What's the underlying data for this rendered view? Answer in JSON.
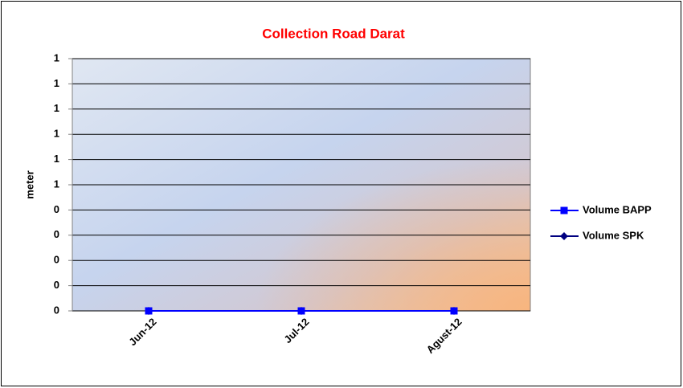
{
  "chart_data": {
    "type": "line",
    "title": "Collection Road Darat",
    "y_label": "meter",
    "categories": [
      "Jun-12",
      "Jul-12",
      "Agust-12"
    ],
    "series": [
      {
        "name": "Volume BAPP",
        "color": "#0000ff",
        "marker": "square",
        "values": [
          0,
          0,
          0
        ]
      },
      {
        "name": "Volume SPK",
        "color": "#000080",
        "marker": "diamond",
        "values": [
          0,
          0,
          0
        ]
      }
    ],
    "ylim": [
      0,
      1
    ],
    "yticks": [
      0,
      {
        "value": 0.1,
        "label": "0"
      },
      {
        "value": 0.2,
        "label": "0"
      },
      {
        "value": 0.3,
        "label": "0"
      },
      {
        "value": 0.4,
        "label": "0"
      },
      {
        "value": 0.5,
        "label": "1"
      },
      {
        "value": 0.6,
        "label": "1"
      },
      {
        "value": 0.7,
        "label": "1"
      },
      {
        "value": 0.8,
        "label": "1"
      },
      {
        "value": 0.9,
        "label": "1"
      },
      1
    ],
    "grid": true,
    "legend": "right"
  }
}
